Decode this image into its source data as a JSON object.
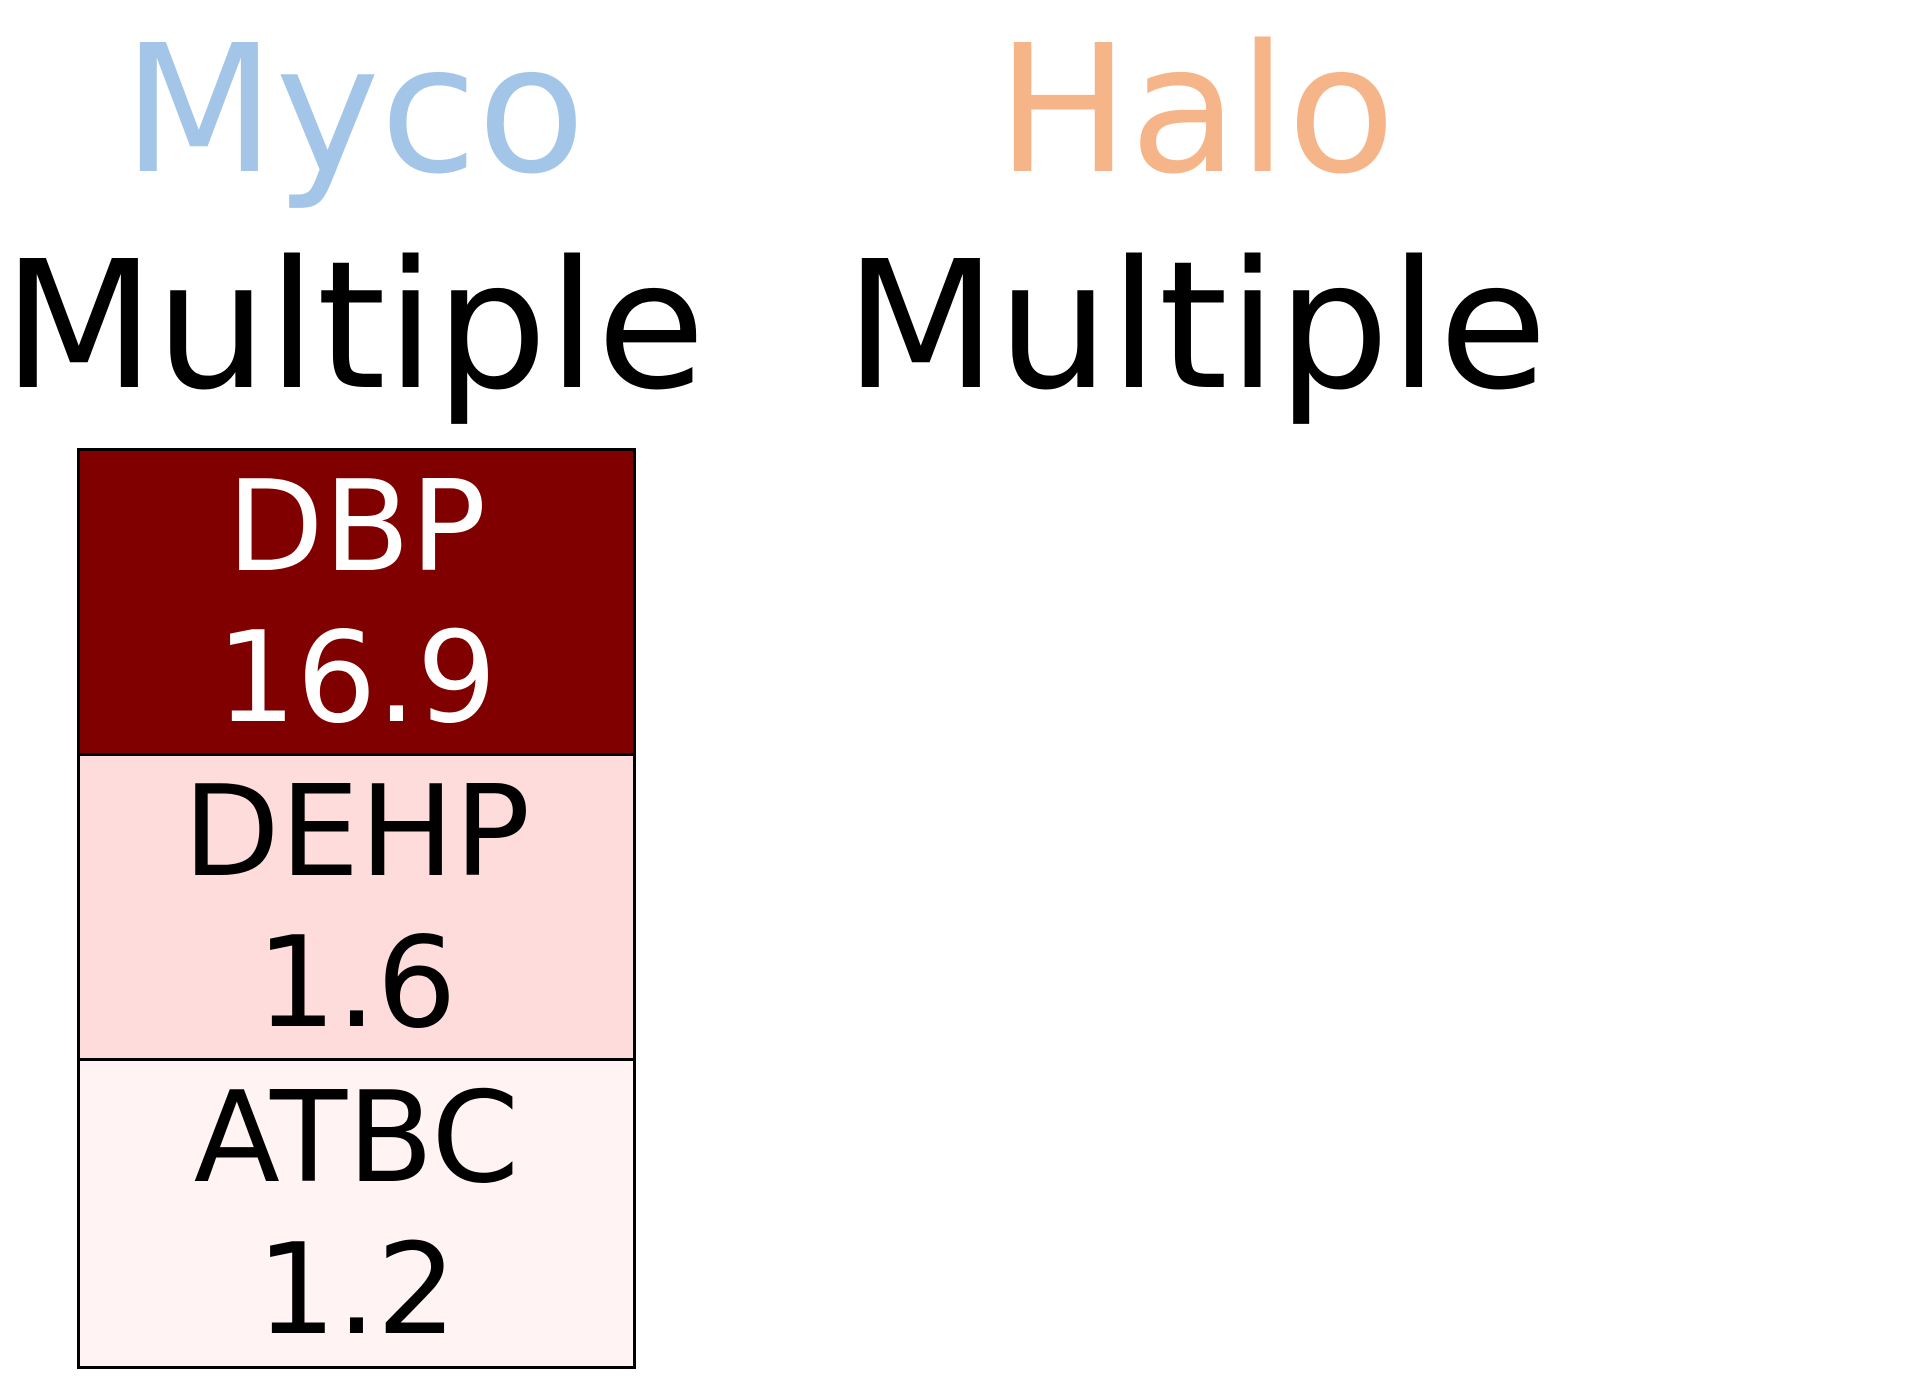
{
  "chart_data": {
    "type": "table",
    "groups": [
      {
        "name": "Myco",
        "color": "#a3c6e8",
        "subtitle": "Multiple",
        "items": [
          {
            "label": "DBP",
            "value": "16.9",
            "fill": "#800000",
            "text_color": "#ffffff"
          },
          {
            "label": "DEHP",
            "value": "1.6",
            "fill": "#fddcdb",
            "text_color": "#000000"
          },
          {
            "label": "ATBC",
            "value": "1.2",
            "fill": "#fff4f3",
            "text_color": "#000000"
          }
        ]
      },
      {
        "name": "Halo",
        "color": "#f5b588",
        "subtitle": "Multiple",
        "items": []
      }
    ]
  }
}
